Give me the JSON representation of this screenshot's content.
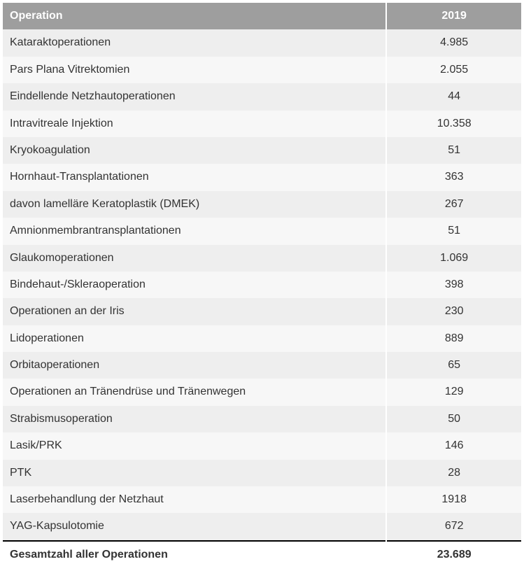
{
  "table": {
    "type": "table",
    "columns": [
      {
        "key": "label",
        "header": "Operation",
        "align": "left",
        "width_pct": 74
      },
      {
        "key": "value",
        "header": "2019",
        "align": "center",
        "width_pct": 26
      }
    ],
    "header_bg": "#9e9e9e",
    "header_fg": "#ffffff",
    "row_bg_odd": "#eeeeee",
    "row_bg_even": "#f7f7f7",
    "row_separator_color": "#ffffff",
    "total_border_color": "#000000",
    "font_size_pt": 12,
    "rows": [
      {
        "label": "Kataraktoperationen",
        "value": "4.985"
      },
      {
        "label": "Pars Plana Vitrektomien",
        "value": "2.055"
      },
      {
        "label": "Eindellende Netzhautoperationen",
        "value": "44"
      },
      {
        "label": "Intravitreale Injektion",
        "value": "10.358"
      },
      {
        "label": "Kryokoagulation",
        "value": "51"
      },
      {
        "label": "Hornhaut-Transplantationen",
        "value": "363"
      },
      {
        "label": "davon lamelläre Keratoplastik (DMEK)",
        "value": "267"
      },
      {
        "label": "Amnionmembrantransplantationen",
        "value": "51"
      },
      {
        "label": "Glaukomoperationen",
        "value": "1.069"
      },
      {
        "label": "Bindehaut-/Skleraoperation",
        "value": "398"
      },
      {
        "label": "Operationen an der Iris",
        "value": "230"
      },
      {
        "label": "Lidoperationen",
        "value": "889"
      },
      {
        "label": "Orbitaoperationen",
        "value": "65"
      },
      {
        "label": "Operationen an Tränendrüse und Tränenwegen",
        "value": "129"
      },
      {
        "label": "Strabismusoperation",
        "value": "50"
      },
      {
        "label": "Lasik/PRK",
        "value": "146"
      },
      {
        "label": "PTK",
        "value": "28"
      },
      {
        "label": "Laserbehandlung der Netzhaut",
        "value": "1918"
      },
      {
        "label": "YAG-Kapsulotomie",
        "value": "672"
      }
    ],
    "total": {
      "label": "Gesamtzahl aller Operationen",
      "value": "23.689"
    }
  }
}
